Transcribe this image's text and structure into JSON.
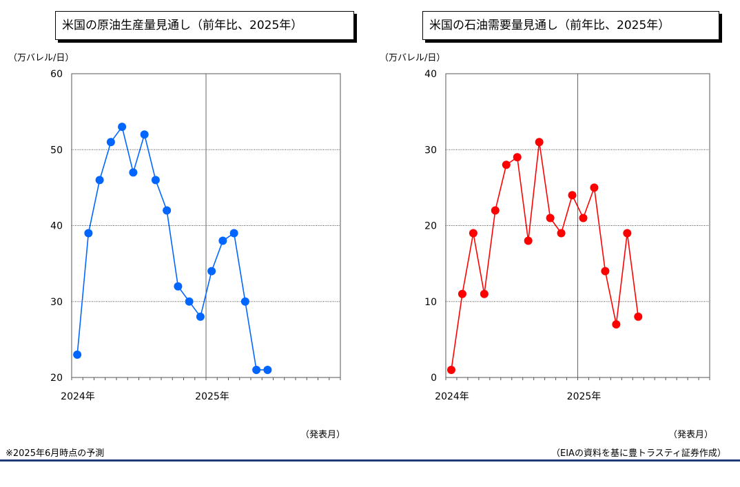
{
  "charts": {
    "left": {
      "title": "米国の原油生産量見通し（前年比、2025年）",
      "unit": "（万バレル/日）",
      "xaxis_note": "（発表月）"
    },
    "right": {
      "title": "米国の石油需要量見通し（前年比、2025年）",
      "unit": "（万バレル/日）",
      "xaxis_note": "（発表月）"
    }
  },
  "footer": {
    "footnote": "※2025年6月時点の予測",
    "source": "（EIAの資料を基に豊トラスティ証券作成）"
  },
  "chart_data": [
    {
      "type": "line",
      "title": "米国の原油生産量見通し（前年比、2025年）",
      "ylabel": "（万バレル/日）",
      "xlabel": "（発表月）",
      "ylim": [
        20,
        60
      ],
      "yticks": [
        20,
        30,
        40,
        50,
        60
      ],
      "xtick_labels": [
        "2024年",
        "2025年"
      ],
      "months_per_axis": 24,
      "grid": true,
      "color": "#0066ff",
      "series": [
        {
          "values": [
            23,
            39,
            46,
            51,
            53,
            47,
            52,
            46,
            42,
            32,
            30,
            28,
            34,
            38,
            39,
            30,
            21,
            21
          ]
        }
      ]
    },
    {
      "type": "line",
      "title": "米国の石油需要量見通し（前年比、2025年）",
      "ylabel": "（万バレル/日）",
      "xlabel": "（発表月）",
      "ylim": [
        0,
        40
      ],
      "yticks": [
        0,
        10,
        20,
        30,
        40
      ],
      "xtick_labels": [
        "2024年",
        "2025年"
      ],
      "months_per_axis": 24,
      "grid": true,
      "color": "#ff0000",
      "series": [
        {
          "values": [
            1,
            11,
            19,
            11,
            22,
            28,
            29,
            18,
            31,
            21,
            19,
            24,
            21,
            25,
            14,
            7,
            19,
            8
          ]
        }
      ]
    }
  ]
}
